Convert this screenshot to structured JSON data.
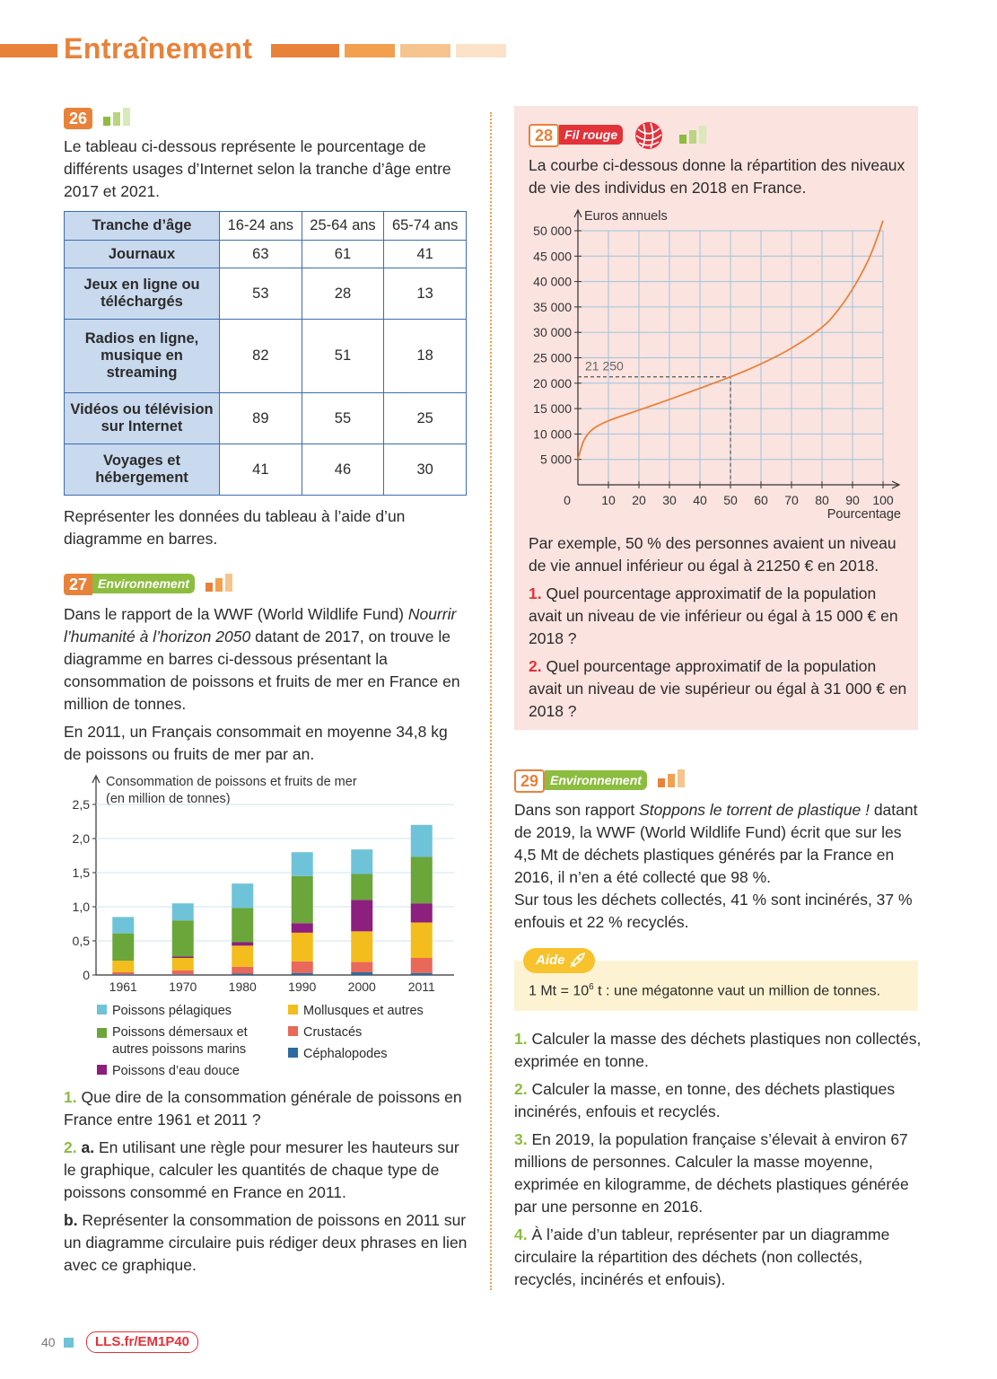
{
  "header": {
    "title": "Entraînement"
  },
  "ex26": {
    "number": "26",
    "intro": "Le tableau ci-dessous représente le pourcentage de différents usages d’Internet selon la tranche d’âge entre 2017 et 2021.",
    "table": {
      "header": [
        "Tranche d’âge",
        "16-24 ans",
        "25-64 ans",
        "65-74 ans"
      ],
      "rows": [
        {
          "label": "Journaux",
          "values": [
            "63",
            "61",
            "41"
          ]
        },
        {
          "label": "Jeux en ligne ou téléchargés",
          "values": [
            "53",
            "28",
            "13"
          ]
        },
        {
          "label": "Radios en ligne, musique en streaming",
          "values": [
            "82",
            "51",
            "18"
          ]
        },
        {
          "label": "Vidéos ou télévision sur Internet",
          "values": [
            "89",
            "55",
            "25"
          ]
        },
        {
          "label": "Voyages et hébergement",
          "values": [
            "41",
            "46",
            "30"
          ]
        }
      ]
    },
    "task": "Représenter les données du tableau à l’aide d’un diagramme en barres."
  },
  "ex27": {
    "number": "27",
    "tag": "Environnement",
    "intro_1": "Dans le rapport de la WWF (World Wildlife Fund)",
    "intro_title": "Nourrir l’humanité à l’horizon 2050",
    "intro_2": " datant de 2017, on trouve le diagramme en barres ci-dessous présentant la consommation de poissons et fruits de mer en France en million de tonnes.",
    "intro_3": "En 2011, un Français consommait en moyenne 34,8 kg de poissons ou fruits de mer par an.",
    "q1_num": "1.",
    "q1": " Que dire de la consommation générale de poissons en France entre 1961 et 2011 ?",
    "q2_num": "2.",
    "q2a_letter": " a.",
    "q2a": " En utilisant une règle pour mesurer les hauteurs sur le graphique, calculer les quantités de chaque type de poissons consommé en France en 2011.",
    "q2b_letter": "b.",
    "q2b": " Représenter la consommation de poissons en 2011 sur un diagramme circulaire puis rédiger deux phrases en lien avec ce graphique."
  },
  "ex28": {
    "number": "28",
    "tag": "Fil rouge",
    "intro": "La courbe ci-dessous donne la répartition des niveaux de vie des individus en 2018 en France.",
    "example": "Par exemple, 50 % des personnes avaient un niveau de vie annuel inférieur ou égal à 21250 € en 2018.",
    "q1_num": "1.",
    "q1": " Quel pourcentage approximatif de la population avait un niveau de vie inférieur ou égal à 15 000 € en 2018 ?",
    "q2_num": "2.",
    "q2": " Quel pourcentage approximatif de la population avait un niveau de vie supérieur ou égal à 31 000 € en 2018 ?"
  },
  "ex29": {
    "number": "29",
    "tag": "Environnement",
    "intro_1": "Dans son rapport ",
    "intro_title": "Stoppons le torrent de plastique !",
    "intro_2": " datant de 2019, la WWF (World Wildlife Fund) écrit que sur les 4,5 Mt de déchets plastiques générés par la France en 2016, il n’en a été collecté que 98 %.",
    "intro_3": "Sur tous les déchets collectés, 41 % sont incinérés, 37 % enfouis et 22 % recyclés.",
    "aide_label": "Aide",
    "aide_text_1": "1 Mt = 10",
    "aide_sup": "6",
    "aide_text_2": " t : une mégatonne vaut un million de tonnes.",
    "q1_num": "1.",
    "q1": " Calculer la masse des déchets plastiques non collectés, exprimée en tonne.",
    "q2_num": "2.",
    "q2": " Calculer la masse, en tonne, des déchets plastiques incinérés, enfouis et recyclés.",
    "q3_num": "3.",
    "q3": " En 2019, la population française s’élevait à environ 67 millions de personnes. Calculer la masse moyenne, exprimée en kilogramme, de déchets plastiques générée par une personne en 2016.",
    "q4_num": "4.",
    "q4": " À l’aide d’un tableur, représenter par un diagramme circulaire la répartition des déchets (non collectés, recyclés, incinérés et enfouis)."
  },
  "footer": {
    "page": "40",
    "link": "LLS.fr/EM1P40"
  },
  "colors": {
    "orange": "#e8823a",
    "green": "#8cbd3f",
    "blue_cell": "#c9d9ee",
    "pink_bg": "#fbe3df",
    "pelagiques": "#6fc3d8",
    "demersaux": "#6aa63a",
    "eau_douce": "#8d1f7e",
    "mollusques": "#f2bd1d",
    "crustaces": "#e8685a",
    "cephalopodes": "#2c6aa0"
  },
  "chart_data": [
    {
      "type": "bar",
      "stacked": true,
      "ylabel": "Consommation de poissons et fruits de mer (en million de tonnes)",
      "categories": [
        "1961",
        "1970",
        "1980",
        "1990",
        "2000",
        "2011"
      ],
      "ylim": [
        0,
        2.5
      ],
      "yticks": [
        "0",
        "0,5",
        "1,0",
        "1,5",
        "2,0",
        "2,5"
      ],
      "series": [
        {
          "name": "Céphalopodes",
          "color": "#2c6aa0",
          "values": [
            0.01,
            0.01,
            0.02,
            0.03,
            0.04,
            0.03
          ]
        },
        {
          "name": "Crustacés",
          "color": "#e8685a",
          "values": [
            0.03,
            0.06,
            0.1,
            0.17,
            0.15,
            0.22
          ]
        },
        {
          "name": "Mollusques et autres",
          "color": "#f2bd1d",
          "values": [
            0.17,
            0.18,
            0.31,
            0.42,
            0.45,
            0.52
          ]
        },
        {
          "name": "Poissons d’eau douce",
          "color": "#8d1f7e",
          "values": [
            0.0,
            0.02,
            0.05,
            0.14,
            0.46,
            0.28
          ]
        },
        {
          "name": "Poissons démersaux et autres poissons marins",
          "color": "#6aa63a",
          "values": [
            0.4,
            0.53,
            0.5,
            0.69,
            0.38,
            0.68
          ]
        },
        {
          "name": "Poissons pélagiques",
          "color": "#6fc3d8",
          "values": [
            0.24,
            0.25,
            0.36,
            0.35,
            0.36,
            0.47
          ]
        }
      ],
      "legend": [
        "Poissons pélagiques",
        "Mollusques et autres",
        "Poissons démersaux et autres poissons marins",
        "Crustacés",
        "Poissons d’eau douce",
        "Céphalopodes"
      ]
    },
    {
      "type": "line",
      "xlabel": "Pourcentage",
      "ylabel": "Euros annuels",
      "xlim": [
        0,
        100
      ],
      "ylim": [
        0,
        50000
      ],
      "xticks": [
        "0",
        "10",
        "20",
        "30",
        "40",
        "50",
        "60",
        "70",
        "80",
        "90",
        "100"
      ],
      "yticks": [
        "5 000",
        "10 000",
        "15 000",
        "20 000",
        "25 000",
        "30 000",
        "35 000",
        "40 000",
        "45 000",
        "50 000"
      ],
      "grid": true,
      "annotation": {
        "label": "21 250",
        "x": 50,
        "y": 21250
      },
      "x": [
        0,
        2,
        5,
        10,
        20,
        30,
        40,
        50,
        60,
        70,
        80,
        85,
        90,
        95,
        98,
        100
      ],
      "y": [
        5000,
        8800,
        11000,
        12600,
        14700,
        16800,
        19000,
        21250,
        23800,
        26900,
        31000,
        34200,
        38500,
        44000,
        48500,
        52000
      ],
      "color": "#e8823a"
    }
  ]
}
